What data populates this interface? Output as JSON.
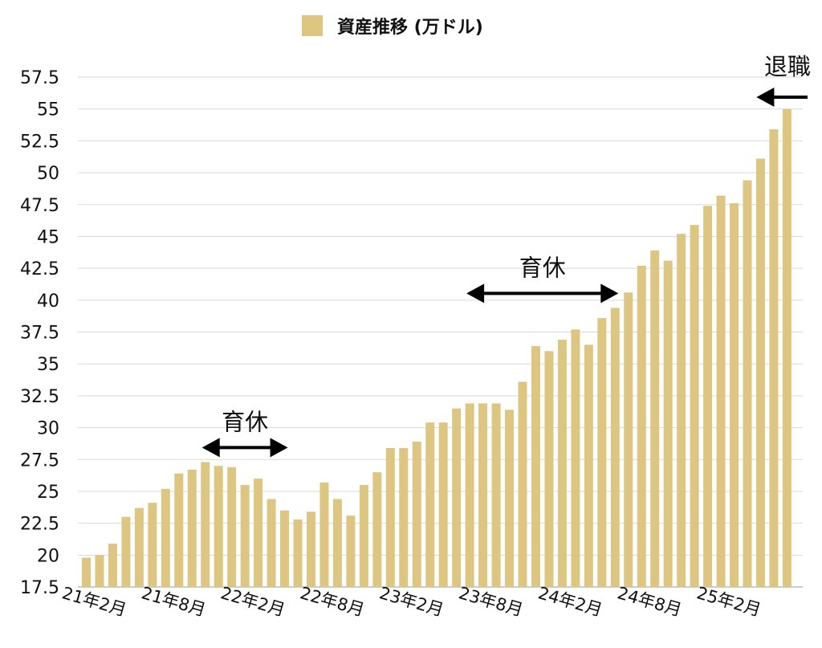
{
  "chart_data": {
    "type": "bar",
    "title": "",
    "xlabel": "",
    "ylabel": "",
    "ylim": [
      17.5,
      57.5
    ],
    "grid": true,
    "legend": {
      "label": "資産推移 (万ドル)",
      "position": "top-center"
    },
    "series": [
      {
        "name": "資産推移 (万ドル)",
        "color": "#dcc682",
        "values": [
          19.8,
          20.0,
          20.9,
          23.0,
          23.7,
          24.1,
          25.2,
          26.4,
          26.7,
          27.3,
          27.0,
          26.9,
          25.5,
          26.0,
          24.4,
          23.5,
          22.8,
          23.4,
          25.7,
          24.4,
          23.1,
          25.5,
          26.5,
          28.4,
          28.4,
          28.9,
          30.4,
          30.4,
          31.5,
          31.9,
          31.9,
          31.9,
          31.4,
          33.6,
          36.4,
          36.0,
          36.9,
          37.7,
          36.5,
          38.6,
          39.4,
          40.6,
          42.7,
          43.9,
          43.1,
          45.2,
          45.9,
          47.4,
          48.2,
          47.6,
          49.4,
          51.1,
          53.4,
          55.0
        ]
      }
    ],
    "y_ticks": [
      "17.5",
      "20",
      "22.5",
      "25",
      "27.5",
      "30",
      "32.5",
      "35",
      "37.5",
      "40",
      "42.5",
      "45",
      "47.5",
      "50",
      "52.5",
      "55",
      "57.5"
    ],
    "x_tick_labels": [
      "21年2月",
      "21年8月",
      "22年2月",
      "22年8月",
      "23年2月",
      "23年8月",
      "24年2月",
      "24年8月",
      "25年2月"
    ],
    "annotations": [
      {
        "text": "育休",
        "arrow": "both",
        "from_bar": 9,
        "to_bar": 15
      },
      {
        "text": "育休",
        "arrow": "both",
        "from_bar": 29,
        "to_bar": 40
      },
      {
        "text": "退職",
        "arrow": "left",
        "from_bar": 53,
        "to_bar": 53
      }
    ]
  }
}
